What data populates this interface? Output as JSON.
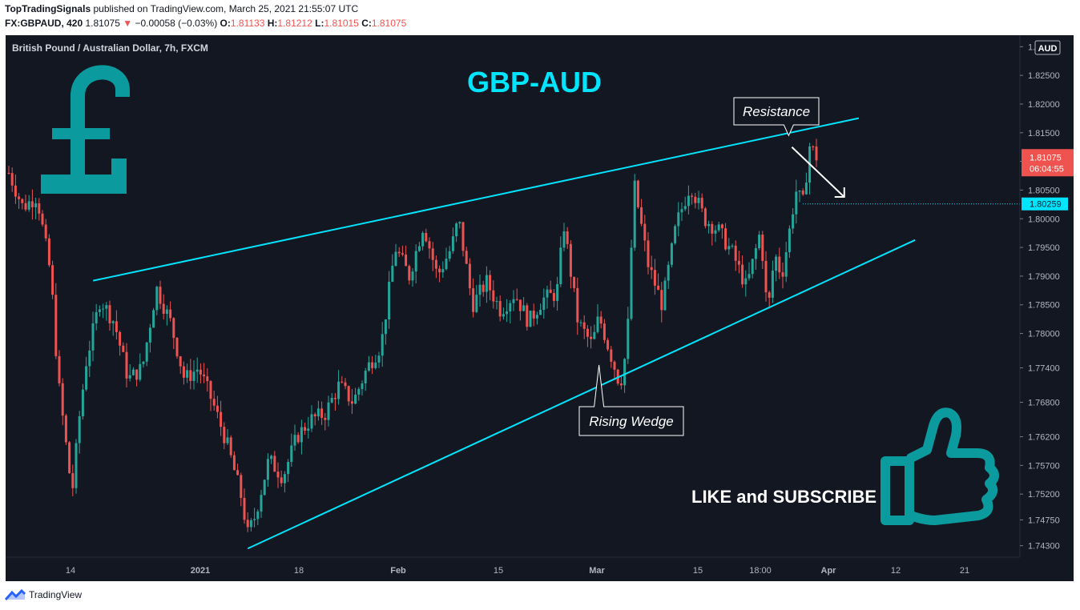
{
  "header": {
    "author": "TopTradingSignals",
    "published_text": "published on TradingView.com, March 25, 2021 21:55:07 UTC",
    "symbol": "FX:GBPAUD, 420",
    "last": "1.81075",
    "change_arrow": "▼",
    "change": "−0.00058 (−0.03%)",
    "o_label": "O:",
    "o_val": "1.81133",
    "h_label": "H:",
    "h_val": "1.81212",
    "l_label": "L:",
    "l_val": "1.81015",
    "c_label": "C:",
    "c_val": "1.81075"
  },
  "footer": {
    "brand": "TradingView"
  },
  "colors": {
    "background": "#131722",
    "up": "#26a69a",
    "down": "#ef5350",
    "trendline": "#00e5ff",
    "title": "#00e5ff",
    "icon": "#0b9a9e"
  },
  "icons": [
    "pound-sign-icon",
    "thumbs-up-icon",
    "tradingview-logo-icon"
  ],
  "chart_data": {
    "type": "candlestick",
    "legend_text": "British Pound / Australian Dollar, 7h, FXCM",
    "title": "GBP-AUD",
    "currency_label": "AUD",
    "ylim": [
      1.741,
      1.832
    ],
    "yticks": [
      "1.83000",
      "1.82500",
      "1.82000",
      "1.81500",
      "1.81000",
      "1.80500",
      "1.80000",
      "1.79500",
      "1.79000",
      "1.78500",
      "1.78000",
      "1.77400",
      "1.76800",
      "1.76200",
      "1.75700",
      "1.75200",
      "1.74750",
      "1.74300"
    ],
    "xticks": [
      "14",
      "2021",
      "18",
      "Feb",
      "15",
      "Mar",
      "15",
      "18:00",
      "Apr",
      "12",
      "21"
    ],
    "price_label": "1.81075",
    "countdown": "06:04:55",
    "level_line": {
      "value": 1.80259,
      "label": "1.80259"
    },
    "resistance_line": {
      "from": [
        "2020-12-16",
        1.7892
      ],
      "to": [
        "2021-03-27",
        1.8167
      ]
    },
    "support_line": {
      "from": [
        "2021-01-07",
        1.7425
      ],
      "to": [
        "2021-04-12",
        1.7963
      ]
    },
    "annotations": [
      {
        "text": "Resistance",
        "points_to": [
          "2021-03-25",
          1.8145
        ]
      },
      {
        "text": "Rising Wedge",
        "points_to": [
          "2021-02-26",
          1.7745
        ]
      }
    ],
    "arrow": {
      "from": [
        "2021-03-25",
        1.8125
      ],
      "to": [
        "2021-04-01",
        1.8038
      ]
    },
    "promo_text": "LIKE and SUBSCRIBE",
    "waypoints": [
      [
        "2020-12-04",
        1.808
      ],
      [
        "2020-12-06",
        1.802
      ],
      [
        "2020-12-08",
        1.804
      ],
      [
        "2020-12-10",
        1.79
      ],
      [
        "2020-12-11",
        1.772
      ],
      [
        "2020-12-13",
        1.752
      ],
      [
        "2020-12-14",
        1.765
      ],
      [
        "2020-12-15",
        1.775
      ],
      [
        "2020-12-17",
        1.786
      ],
      [
        "2020-12-19",
        1.782
      ],
      [
        "2020-12-21",
        1.772
      ],
      [
        "2020-12-23",
        1.774
      ],
      [
        "2020-12-25",
        1.788
      ],
      [
        "2020-12-27",
        1.782
      ],
      [
        "2020-12-29",
        1.772
      ],
      [
        "2020-12-31",
        1.774
      ],
      [
        "2021-01-02",
        1.768
      ],
      [
        "2021-01-04",
        1.761
      ],
      [
        "2021-01-06",
        1.752
      ],
      [
        "2021-01-07",
        1.745
      ],
      [
        "2021-01-08",
        1.748
      ],
      [
        "2021-01-10",
        1.758
      ],
      [
        "2021-01-12",
        1.755
      ],
      [
        "2021-01-14",
        1.762
      ],
      [
        "2021-01-16",
        1.765
      ],
      [
        "2021-01-18",
        1.766
      ],
      [
        "2021-01-20",
        1.771
      ],
      [
        "2021-01-22",
        1.768
      ],
      [
        "2021-01-24",
        1.774
      ],
      [
        "2021-01-26",
        1.778
      ],
      [
        "2021-01-28",
        1.795
      ],
      [
        "2021-01-30",
        1.79
      ],
      [
        "2021-02-01",
        1.799
      ],
      [
        "2021-02-03",
        1.79
      ],
      [
        "2021-02-05",
        1.795
      ],
      [
        "2021-02-06",
        1.8
      ],
      [
        "2021-02-08",
        1.785
      ],
      [
        "2021-02-10",
        1.789
      ],
      [
        "2021-02-12",
        1.784
      ],
      [
        "2021-02-14",
        1.787
      ],
      [
        "2021-02-16",
        1.782
      ],
      [
        "2021-02-18",
        1.786
      ],
      [
        "2021-02-20",
        1.787
      ],
      [
        "2021-02-21",
        1.799
      ],
      [
        "2021-02-23",
        1.782
      ],
      [
        "2021-02-25",
        1.778
      ],
      [
        "2021-02-26",
        1.783
      ],
      [
        "2021-02-28",
        1.775
      ],
      [
        "2021-03-01",
        1.771
      ],
      [
        "2021-03-02",
        1.778
      ],
      [
        "2021-03-03",
        1.806
      ],
      [
        "2021-03-05",
        1.792
      ],
      [
        "2021-03-07",
        1.785
      ],
      [
        "2021-03-09",
        1.799
      ],
      [
        "2021-03-11",
        1.806
      ],
      [
        "2021-03-13",
        1.8
      ],
      [
        "2021-03-15",
        1.798
      ],
      [
        "2021-03-17",
        1.794
      ],
      [
        "2021-03-19",
        1.788
      ],
      [
        "2021-03-21",
        1.798
      ],
      [
        "2021-03-22",
        1.783
      ],
      [
        "2021-03-23",
        1.794
      ],
      [
        "2021-03-24",
        1.79
      ],
      [
        "2021-03-25",
        1.797
      ],
      [
        "2021-03-26",
        1.805
      ],
      [
        "2021-03-27",
        1.8025
      ],
      [
        "2021-03-28",
        1.8128
      ],
      [
        "2021-03-29",
        1.8107
      ]
    ]
  }
}
